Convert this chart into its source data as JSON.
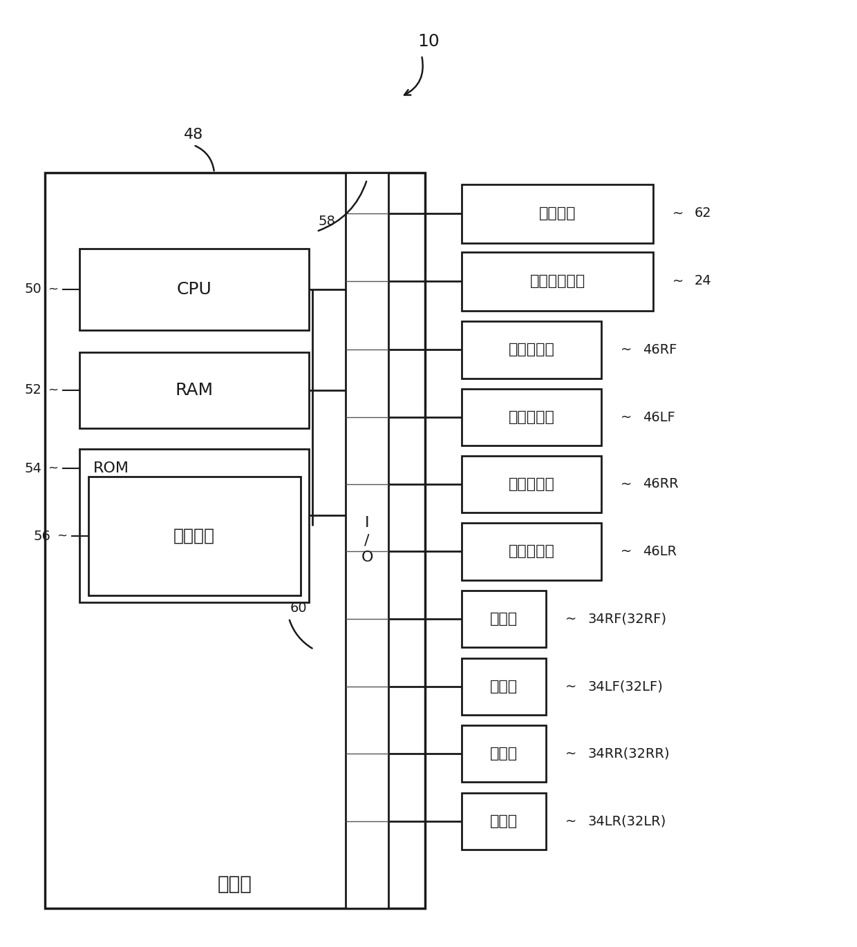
{
  "bg_color": "#ffffff",
  "line_color": "#1a1a1a",
  "title_number": "10",
  "label_48": "48",
  "label_58": "58",
  "label_60": "60",
  "label_50": "50",
  "label_52": "52",
  "label_54": "54",
  "label_56": "56",
  "label_control": "制御部",
  "io_label_1": "I",
  "io_label_2": "/",
  "io_label_3": "O",
  "cpu_label": "CPU",
  "ram_label": "RAM",
  "rom_label": "ROM",
  "ctrl_prog_label": "控制程序",
  "boxes_right": [
    {
      "label": "点火开关",
      "ref": "62",
      "wide": true,
      "motor": false
    },
    {
      "label": "汽车导航装置",
      "ref": "24",
      "wide": true,
      "motor": false
    },
    {
      "label": "动作传感器",
      "ref": "46RF",
      "wide": false,
      "motor": false
    },
    {
      "label": "动作传感器",
      "ref": "46LF",
      "wide": false,
      "motor": false
    },
    {
      "label": "动作传感器",
      "ref": "46RR",
      "wide": false,
      "motor": false
    },
    {
      "label": "动作传感器",
      "ref": "46LR",
      "wide": false,
      "motor": false
    },
    {
      "label": "电动机",
      "ref": "34RF(32RF)",
      "wide": false,
      "motor": true
    },
    {
      "label": "电动机",
      "ref": "34LF(32LF)",
      "wide": false,
      "motor": true
    },
    {
      "label": "电动机",
      "ref": "34RR(32RR)",
      "wide": false,
      "motor": true
    },
    {
      "label": "电动机",
      "ref": "34LR(32LR)",
      "wide": false,
      "motor": true
    }
  ]
}
